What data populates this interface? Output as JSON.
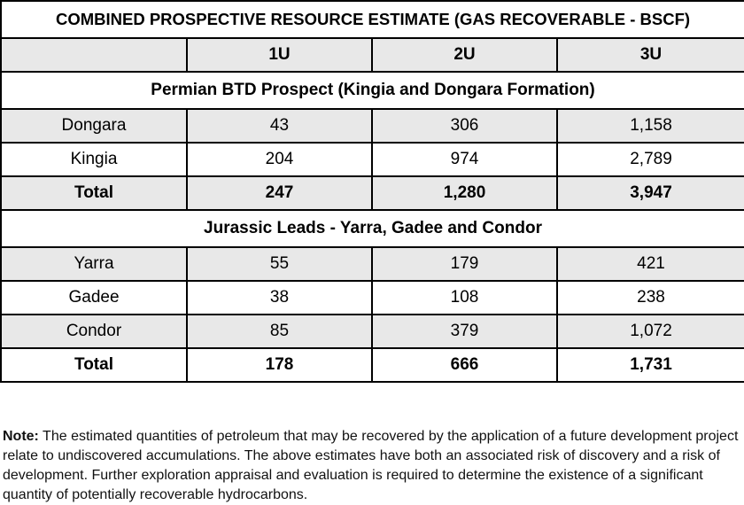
{
  "table": {
    "title": "COMBINED PROSPECTIVE RESOURCE ESTIMATE (GAS RECOVERABLE - BSCF)",
    "header": [
      "",
      "1U",
      "2U",
      "3U"
    ],
    "sections": [
      {
        "name": "Permian BTD Prospect (Kingia and Dongara Formation)",
        "rows": [
          {
            "label": "Dongara",
            "u1": "43",
            "u2": "306",
            "u3": "1,158"
          },
          {
            "label": "Kingia",
            "u1": "204",
            "u2": "974",
            "u3": "2,789"
          }
        ],
        "total": {
          "label": "Total",
          "u1": "247",
          "u2": "1,280",
          "u3": "3,947"
        }
      },
      {
        "name": "Jurassic Leads - Yarra, Gadee and Condor",
        "rows": [
          {
            "label": "Yarra",
            "u1": "55",
            "u2": "179",
            "u3": "421"
          },
          {
            "label": "Gadee",
            "u1": "38",
            "u2": "108",
            "u3": "238"
          },
          {
            "label": "Condor",
            "u1": "85",
            "u2": "379",
            "u3": "1,072"
          }
        ],
        "total": {
          "label": "Total",
          "u1": "178",
          "u2": "666",
          "u3": "1,731"
        }
      }
    ]
  },
  "note": {
    "label": "Note:",
    "text": " The estimated quantities of petroleum that may be recovered by the application of a future development project relate to undiscovered accumulations. The above estimates have both an associated risk of discovery and a risk of development. Further exploration appraisal and evaluation is required to determine the existence of a significant quantity of potentially recoverable hydrocarbons."
  },
  "colors": {
    "shade": "#e8e8e8",
    "border": "#000000"
  }
}
